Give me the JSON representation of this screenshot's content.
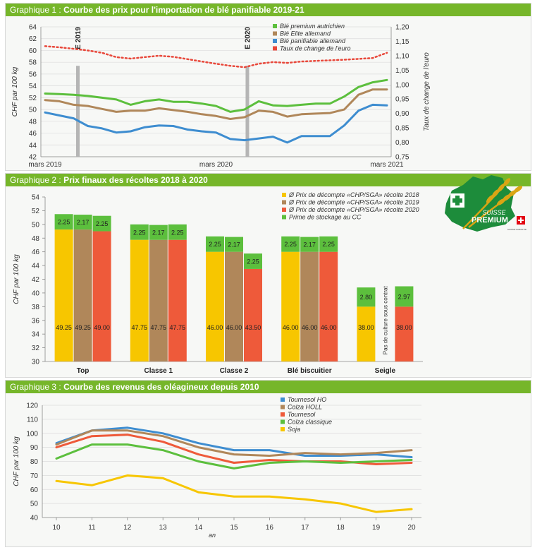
{
  "chart_data": [
    {
      "type": "line",
      "number": "Graphique 1 :",
      "title": "Courbe des prix pour l'importation de blé panifiable 2019-21",
      "ylabel": "CHF par 100 kg",
      "y2label": "Taux de change de l'euro",
      "ylim": [
        42,
        64
      ],
      "yticks": [
        "42",
        "44",
        "46",
        "48",
        "50",
        "52",
        "54",
        "56",
        "58",
        "60",
        "62",
        "64"
      ],
      "y2lim": [
        0.75,
        1.2
      ],
      "y2ticks": [
        "0,75",
        "0,80",
        "0,85",
        "0,90",
        "0,95",
        "1,00",
        "1,05",
        "1,10",
        "1,15",
        "1,20"
      ],
      "xticks": [
        {
          "x": 0,
          "label": "mars 2019"
        },
        {
          "x": 12,
          "label": "mars 2020"
        },
        {
          "x": 24,
          "label": "mars 2021"
        }
      ],
      "xlim": [
        0,
        24
      ],
      "markers": [
        {
          "x": 2.3,
          "label": "E 2019"
        },
        {
          "x": 14.2,
          "label": "E 2020"
        }
      ],
      "grid": true,
      "legend_position": "top-right",
      "series": [
        {
          "name": "Blé premium autrichien",
          "color": "#5cbf3d",
          "axis": "left",
          "style": "solid",
          "values": [
            52.7,
            52.6,
            52.5,
            52.3,
            52.0,
            51.7,
            50.8,
            51.4,
            51.7,
            51.3,
            51.3,
            51.0,
            50.6,
            49.6,
            50.0,
            51.4,
            50.7,
            50.6,
            50.8,
            51.0,
            51.0,
            52.2,
            53.8,
            54.6,
            55.0
          ]
        },
        {
          "name": "Blé Elite allemand",
          "color": "#b0875a",
          "axis": "left",
          "style": "solid",
          "values": [
            51.6,
            51.4,
            50.8,
            50.6,
            50.1,
            49.6,
            49.8,
            49.8,
            50.2,
            49.9,
            49.6,
            49.2,
            48.9,
            48.4,
            48.7,
            49.8,
            49.6,
            48.8,
            49.2,
            49.3,
            49.4,
            50.0,
            52.5,
            53.4,
            53.4
          ]
        },
        {
          "name": "Blé panifiable allemand",
          "color": "#3e8dd0",
          "axis": "left",
          "style": "solid",
          "values": [
            49.5,
            49.0,
            48.5,
            47.2,
            46.8,
            46.1,
            46.3,
            47.0,
            47.3,
            47.2,
            46.6,
            46.3,
            46.1,
            45.0,
            44.8,
            45.1,
            45.4,
            44.4,
            45.5,
            45.5,
            45.5,
            47.3,
            49.8,
            50.8,
            50.7
          ]
        },
        {
          "name": "Taux de change de l'euro",
          "color": "#e8473a",
          "axis": "right",
          "style": "dotted",
          "values": [
            1.133,
            1.129,
            1.124,
            1.118,
            1.11,
            1.095,
            1.09,
            1.095,
            1.1,
            1.096,
            1.088,
            1.08,
            1.072,
            1.065,
            1.06,
            1.072,
            1.078,
            1.075,
            1.08,
            1.082,
            1.084,
            1.086,
            1.089,
            1.092,
            1.11
          ]
        }
      ]
    },
    {
      "type": "bar",
      "number": "Graphique 2 :",
      "title": "Prix finaux des récoltes 2018 à 2020",
      "ylabel": "CHF par 100 kg",
      "ylim": [
        30,
        54
      ],
      "yticks": [
        "30",
        "32",
        "34",
        "36",
        "38",
        "40",
        "42",
        "44",
        "46",
        "48",
        "50",
        "52",
        "54"
      ],
      "categories": [
        "Top",
        "Classe 1",
        "Classe 2",
        "Blé biscuitier",
        "Seigle"
      ],
      "stacked": true,
      "legend_position": "top-right",
      "series": [
        {
          "name": "Ø Prix de décompte «CHP/SGA» récolte 2018",
          "color": "#f7c600",
          "values": [
            49.25,
            47.75,
            46.0,
            46.0,
            38.0
          ],
          "labels": [
            "49.25",
            "47.75",
            "46.00",
            "46.00",
            "38.00"
          ]
        },
        {
          "name": "Ø Prix de décompte «CHP/SGA» récolte 2019",
          "color": "#b0875a",
          "values": [
            49.25,
            47.75,
            46.0,
            46.0,
            null
          ],
          "labels": [
            "49.25",
            "47.75",
            "46.00",
            "46.00",
            ""
          ]
        },
        {
          "name": "Ø Prix de décompte «CHP/SGA» récolte 2020",
          "color": "#ee5a3a",
          "values": [
            49.0,
            47.75,
            43.5,
            46.0,
            38.0
          ],
          "labels": [
            "49.00",
            "47.75",
            "43.50",
            "46.00",
            "38.00"
          ]
        },
        {
          "name": "Prime de stockage au CC",
          "color": "#5cbf3d",
          "stack_on": true,
          "values_by_year": [
            [
              2.25,
              2.17,
              2.25
            ],
            [
              2.25,
              2.17,
              2.25
            ],
            [
              2.25,
              2.17,
              2.25
            ],
            [
              2.25,
              2.17,
              2.25
            ],
            [
              2.8,
              null,
              2.97
            ]
          ],
          "labels_by_year": [
            [
              "2.25",
              "2.17",
              "2.25"
            ],
            [
              "2.25",
              "2.17",
              "2.25"
            ],
            [
              "2.25",
              "2.17",
              "2.25"
            ],
            [
              "2.25",
              "2.17",
              "2.25"
            ],
            [
              "2.80",
              "",
              "2.97"
            ]
          ]
        }
      ],
      "annotations": [
        {
          "category": "Seigle",
          "series": "Ø Prix de décompte «CHP/SGA» récolte 2019",
          "text": "Pas de culture sous contrat"
        }
      ]
    },
    {
      "type": "line",
      "number": "Graphique 3 :",
      "title": "Courbe des revenus des oléagineux depuis 2010",
      "ylabel": "CHF par 100 kg",
      "xlabel": "an",
      "ylim": [
        40,
        120
      ],
      "yticks": [
        "40",
        "50",
        "60",
        "70",
        "80",
        "90",
        "100",
        "110",
        "120"
      ],
      "x": [
        "10",
        "11",
        "12",
        "13",
        "14",
        "15",
        "16",
        "17",
        "18",
        "19",
        "20"
      ],
      "grid": true,
      "legend_position": "top-right",
      "series": [
        {
          "name": "Tournesol HO",
          "color": "#3e8dd0",
          "values": [
            93,
            102,
            104,
            100,
            93,
            88,
            88,
            84,
            84,
            85,
            83
          ]
        },
        {
          "name": "Colza HOLL",
          "color": "#b0875a",
          "values": [
            92,
            102,
            102,
            98,
            90,
            85,
            84,
            86,
            85,
            86,
            88
          ]
        },
        {
          "name": "Tournesol",
          "color": "#ee5a3a",
          "values": [
            90,
            98,
            99,
            94,
            85,
            79,
            81,
            80,
            80,
            78,
            79
          ]
        },
        {
          "name": "Colza classique",
          "color": "#5cbf3d",
          "values": [
            82,
            92,
            92,
            88,
            80,
            75,
            79,
            80,
            79,
            80,
            81
          ]
        },
        {
          "name": "Soja",
          "color": "#f7c600",
          "values": [
            66,
            63,
            70,
            68,
            58,
            55,
            55,
            53,
            50,
            44,
            46
          ]
        }
      ]
    }
  ],
  "logo": {
    "text_top": "SUISSE",
    "text_main": "PREMIUM",
    "registered": "®",
    "badge": "SUISSE GARANTIE",
    "colors": {
      "green": "#1d8c3b",
      "gold": "#d9a514",
      "red": "#e30613"
    }
  }
}
